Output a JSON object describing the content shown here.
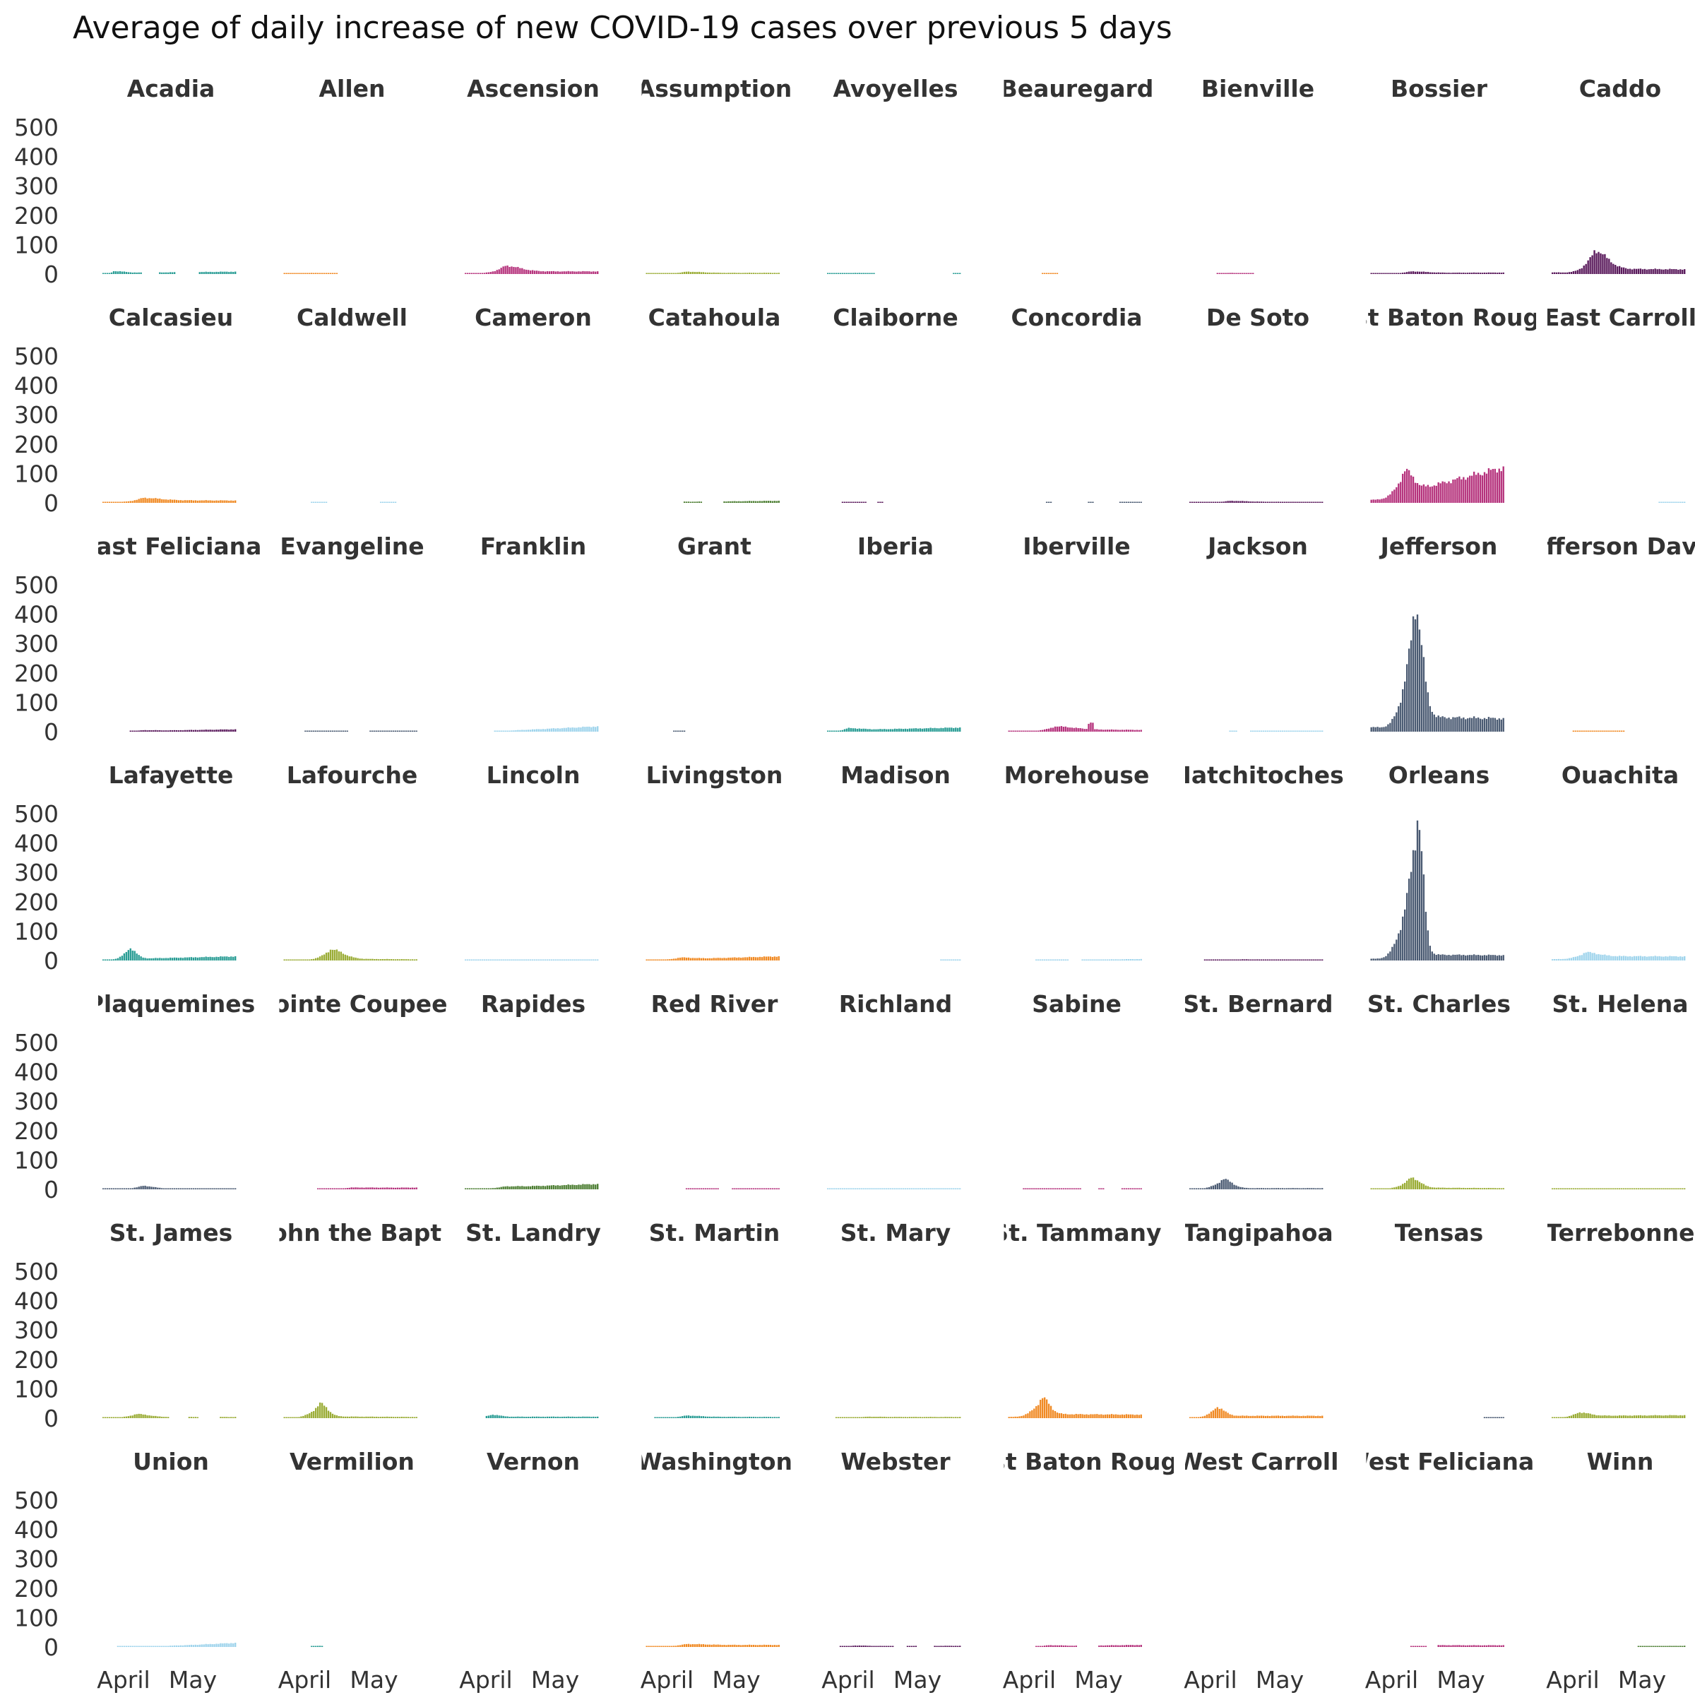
{
  "chart_data": {
    "type": "bar",
    "title": "Average of daily increase of new COVID-19 cases over previous 5 days",
    "xlabel": "",
    "ylabel": "",
    "ylim": [
      0,
      500
    ],
    "y_ticks": [
      "500",
      "400",
      "300",
      "200",
      "100",
      "0"
    ],
    "x_tick_labels": [
      "April",
      "May"
    ],
    "grid": false,
    "legend": "none",
    "facet_layout": {
      "columns": 9,
      "rows": 7
    },
    "panel_titles_as_drawn": {
      "East Baton Rouge": "ast Baton Roug",
      "Jefferson Davis": "Jefferson Davis",
      "St. John the Baptist": "John the Bapt",
      "West Baton Rouge": "est Baton Roug"
    },
    "palette": {
      "teal": "#2a9d95",
      "orange": "#f08a24",
      "magenta": "#b5327c",
      "olive": "#9aac35",
      "darkpurple": "#5a1a5c",
      "slate": "#4a5a72",
      "lightblue": "#9fd4ec",
      "darkgreen": "#4e7f34"
    },
    "panels": [
      {
        "name": "Acadia",
        "color": "teal",
        "shape": {
          "base": 4,
          "peak": 10,
          "peak_pos": 0.08,
          "width": 0.08,
          "end": 8,
          "gaps": [
            [
              0.3,
              0.42
            ],
            [
              0.55,
              0.72
            ]
          ]
        }
      },
      {
        "name": "Allen",
        "color": "orange",
        "shape": {
          "base": 2,
          "peak": 4,
          "peak_pos": 0.2,
          "width": 0.1,
          "end": 0,
          "gaps": [
            [
              0.4,
              1.0
            ]
          ]
        }
      },
      {
        "name": "Ascension",
        "color": "magenta",
        "shape": {
          "base": 9,
          "peak": 28,
          "peak_pos": 0.3,
          "width": 0.12,
          "end": 9
        }
      },
      {
        "name": "Assumption",
        "color": "olive",
        "shape": {
          "base": 4,
          "peak": 8,
          "peak_pos": 0.3,
          "width": 0.12,
          "end": 4
        }
      },
      {
        "name": "Avoyelles",
        "color": "teal",
        "shape": {
          "base": 2,
          "peak": 4,
          "peak_pos": 0.2,
          "width": 0.1,
          "end": 2,
          "gaps": [
            [
              0.35,
              0.95
            ]
          ]
        }
      },
      {
        "name": "Beauregard",
        "color": "orange",
        "shape": {
          "base": 2,
          "peak": 3,
          "peak_pos": 0.3,
          "width": 0.1,
          "end": 0,
          "gaps": [
            [
              0.0,
              0.25
            ],
            [
              0.38,
              1.0
            ]
          ]
        }
      },
      {
        "name": "Bienville",
        "color": "magenta",
        "shape": {
          "base": 2,
          "peak": 4,
          "peak_pos": 0.3,
          "width": 0.1,
          "end": 0,
          "gaps": [
            [
              0.0,
              0.2
            ],
            [
              0.48,
              1.0
            ]
          ]
        }
      },
      {
        "name": "Bossier",
        "color": "darkpurple",
        "shape": {
          "base": 4,
          "peak": 9,
          "peak_pos": 0.3,
          "width": 0.12,
          "end": 5
        }
      },
      {
        "name": "Caddo",
        "color": "darkpurple",
        "shape": {
          "base": 18,
          "peak": 80,
          "peak_pos": 0.32,
          "width": 0.1,
          "end": 16
        }
      },
      {
        "name": "Calcasieu",
        "color": "orange",
        "shape": {
          "base": 9,
          "peak": 17,
          "peak_pos": 0.3,
          "width": 0.14,
          "end": 8
        }
      },
      {
        "name": "Caldwell",
        "color": "lightblue",
        "shape": {
          "base": 1,
          "peak": 2,
          "peak_pos": 0.3,
          "width": 0.1,
          "end": 1,
          "gaps": [
            [
              0.0,
              0.2
            ],
            [
              0.32,
              0.72
            ],
            [
              0.85,
              1.0
            ]
          ]
        }
      },
      {
        "name": "Cameron",
        "color": "lightblue",
        "shape": {
          "base": 0,
          "peak": 0,
          "peak_pos": 0.5,
          "width": 0.1,
          "end": 0
        }
      },
      {
        "name": "Catahoula",
        "color": "darkgreen",
        "shape": {
          "base": 3,
          "peak": 4,
          "peak_pos": 0.2,
          "width": 0.1,
          "end": 7,
          "gaps": [
            [
              0.0,
              0.27
            ],
            [
              0.42,
              0.58
            ]
          ]
        }
      },
      {
        "name": "Claiborne",
        "color": "darkpurple",
        "shape": {
          "base": 2,
          "peak": 3,
          "peak_pos": 0.2,
          "width": 0.1,
          "end": 0,
          "gaps": [
            [
              0.0,
              0.1
            ],
            [
              0.3,
              0.38
            ],
            [
              0.42,
              1.0
            ]
          ]
        }
      },
      {
        "name": "Concordia",
        "color": "slate",
        "shape": {
          "base": 1,
          "peak": 1,
          "peak_pos": 0.3,
          "width": 0.1,
          "end": 1,
          "gaps": [
            [
              0.0,
              0.28
            ],
            [
              0.33,
              0.6
            ],
            [
              0.65,
              0.84
            ]
          ]
        }
      },
      {
        "name": "De Soto",
        "color": "darkpurple",
        "shape": {
          "base": 4,
          "peak": 7,
          "peak_pos": 0.3,
          "width": 0.12,
          "end": 3
        }
      },
      {
        "name": "East Baton Rouge",
        "color": "magenta",
        "shape": {
          "base": 35,
          "peak": 110,
          "peak_pos": 0.25,
          "width": 0.07,
          "end": 120
        }
      },
      {
        "name": "East Carroll",
        "color": "lightblue",
        "shape": {
          "base": 1,
          "peak": 1,
          "peak_pos": 0.5,
          "width": 0.1,
          "end": 1,
          "gaps": [
            [
              0.0,
              0.8
            ]
          ]
        }
      },
      {
        "name": "East Feliciana",
        "color": "darkpurple",
        "shape": {
          "base": 3,
          "peak": 5,
          "peak_pos": 0.3,
          "width": 0.1,
          "end": 8,
          "gaps": [
            [
              0.0,
              0.2
            ]
          ]
        }
      },
      {
        "name": "Evangeline",
        "color": "slate",
        "shape": {
          "base": 3,
          "peak": 3,
          "peak_pos": 0.2,
          "width": 0.1,
          "end": 3,
          "gaps": [
            [
              0.0,
              0.15
            ],
            [
              0.48,
              0.65
            ]
          ]
        }
      },
      {
        "name": "Franklin",
        "color": "lightblue",
        "shape": {
          "base": 3,
          "peak": 3,
          "peak_pos": 0.3,
          "width": 0.1,
          "end": 18,
          "gaps": [
            [
              0.0,
              0.22
            ]
          ]
        }
      },
      {
        "name": "Grant",
        "color": "slate",
        "shape": {
          "base": 1,
          "peak": 2,
          "peak_pos": 0.25,
          "width": 0.05,
          "end": 0,
          "gaps": [
            [
              0.0,
              0.2
            ],
            [
              0.3,
              1.0
            ]
          ]
        }
      },
      {
        "name": "Iberia",
        "color": "teal",
        "shape": {
          "base": 6,
          "peak": 12,
          "peak_pos": 0.15,
          "width": 0.1,
          "end": 14
        }
      },
      {
        "name": "Iberville",
        "color": "magenta",
        "shape": {
          "base": 8,
          "peak": 18,
          "peak_pos": 0.35,
          "width": 0.15,
          "end": 6,
          "spike_pos": 0.62,
          "spike": 30
        }
      },
      {
        "name": "Jackson",
        "color": "lightblue",
        "shape": {
          "base": 1,
          "peak": 1,
          "peak_pos": 0.3,
          "width": 0.1,
          "end": 1,
          "gaps": [
            [
              0.0,
              0.3
            ],
            [
              0.36,
              0.45
            ]
          ]
        }
      },
      {
        "name": "Jefferson",
        "color": "slate",
        "shape": {
          "base": 50,
          "peak": 430,
          "peak_pos": 0.33,
          "width": 0.06,
          "end": 45,
          "rise_start": 0.05
        }
      },
      {
        "name": "Jefferson Davis",
        "color": "orange",
        "shape": {
          "base": 2,
          "peak": 3,
          "peak_pos": 0.3,
          "width": 0.1,
          "end": 0,
          "gaps": [
            [
              0.0,
              0.15
            ],
            [
              0.55,
              1.0
            ]
          ]
        }
      },
      {
        "name": "Lafayette",
        "color": "teal",
        "shape": {
          "base": 6,
          "peak": 42,
          "peak_pos": 0.2,
          "width": 0.05,
          "end": 14
        }
      },
      {
        "name": "Lafourche",
        "color": "olive",
        "shape": {
          "base": 6,
          "peak": 38,
          "peak_pos": 0.35,
          "width": 0.1,
          "end": 4
        }
      },
      {
        "name": "Lincoln",
        "color": "lightblue",
        "shape": {
          "base": 2,
          "peak": 2,
          "peak_pos": 0.5,
          "width": 0.1,
          "end": 2
        }
      },
      {
        "name": "Livingston",
        "color": "orange",
        "shape": {
          "base": 5,
          "peak": 10,
          "peak_pos": 0.25,
          "width": 0.1,
          "end": 14
        }
      },
      {
        "name": "Madison",
        "color": "lightblue",
        "shape": {
          "base": 1,
          "peak": 1,
          "peak_pos": 0.5,
          "width": 0.1,
          "end": 1,
          "gaps": [
            [
              0.0,
              0.85
            ]
          ]
        }
      },
      {
        "name": "Morehouse",
        "color": "lightblue",
        "shape": {
          "base": 2,
          "peak": 2,
          "peak_pos": 0.5,
          "width": 0.1,
          "end": 5,
          "gaps": [
            [
              0.0,
              0.2
            ],
            [
              0.45,
              0.55
            ]
          ]
        }
      },
      {
        "name": "Natchitoches",
        "color": "darkpurple",
        "shape": {
          "base": 3,
          "peak": 4,
          "peak_pos": 0.4,
          "width": 0.1,
          "end": 3,
          "gaps": [
            [
              0.0,
              0.1
            ]
          ]
        }
      },
      {
        "name": "Orleans",
        "color": "slate",
        "shape": {
          "base": 20,
          "peak": 490,
          "peak_pos": 0.35,
          "width": 0.045,
          "end": 18,
          "rise_start": 0.02
        }
      },
      {
        "name": "Ouachita",
        "color": "lightblue",
        "shape": {
          "base": 15,
          "peak": 28,
          "peak_pos": 0.25,
          "width": 0.1,
          "end": 14
        }
      },
      {
        "name": "Plaquemines",
        "color": "slate",
        "shape": {
          "base": 3,
          "peak": 12,
          "peak_pos": 0.3,
          "width": 0.08,
          "end": 3
        }
      },
      {
        "name": "Pointe Coupee",
        "color": "magenta",
        "shape": {
          "base": 4,
          "peak": 6,
          "peak_pos": 0.5,
          "width": 0.2,
          "end": 6,
          "gaps": [
            [
              0.0,
              0.25
            ]
          ]
        }
      },
      {
        "name": "Rapides",
        "color": "darkgreen",
        "shape": {
          "base": 8,
          "peak": 10,
          "peak_pos": 0.3,
          "width": 0.1,
          "end": 18
        }
      },
      {
        "name": "Red River",
        "color": "magenta",
        "shape": {
          "base": 2,
          "peak": 2,
          "peak_pos": 0.5,
          "width": 0.1,
          "end": 2,
          "gaps": [
            [
              0.0,
              0.3
            ],
            [
              0.55,
              0.65
            ]
          ]
        }
      },
      {
        "name": "Richland",
        "color": "lightblue",
        "shape": {
          "base": 1,
          "peak": 2,
          "peak_pos": 0.5,
          "width": 0.1,
          "end": 2
        }
      },
      {
        "name": "Sabine",
        "color": "magenta",
        "shape": {
          "base": 2,
          "peak": 2,
          "peak_pos": 0.5,
          "width": 0.1,
          "end": 2,
          "gaps": [
            [
              0.0,
              0.1
            ],
            [
              0.55,
              0.68
            ],
            [
              0.72,
              0.85
            ]
          ]
        }
      },
      {
        "name": "St. Bernard",
        "color": "slate",
        "shape": {
          "base": 4,
          "peak": 35,
          "peak_pos": 0.25,
          "width": 0.07,
          "end": 4
        }
      },
      {
        "name": "St. Charles",
        "color": "olive",
        "shape": {
          "base": 6,
          "peak": 40,
          "peak_pos": 0.3,
          "width": 0.07,
          "end": 4
        }
      },
      {
        "name": "St. Helena",
        "color": "olive",
        "shape": {
          "base": 1,
          "peak": 1,
          "peak_pos": 0.5,
          "width": 0.1,
          "end": 1
        }
      },
      {
        "name": "St. James",
        "color": "olive",
        "shape": {
          "base": 4,
          "peak": 14,
          "peak_pos": 0.25,
          "width": 0.1,
          "end": 4,
          "gaps": [
            [
              0.5,
              0.65
            ],
            [
              0.72,
              0.88
            ]
          ]
        }
      },
      {
        "name": "St. John the Baptist",
        "color": "olive",
        "shape": {
          "base": 6,
          "peak": 50,
          "peak_pos": 0.27,
          "width": 0.06,
          "end": 4
        }
      },
      {
        "name": "St. Landry",
        "color": "teal",
        "shape": {
          "base": 5,
          "peak": 12,
          "peak_pos": 0.2,
          "width": 0.06,
          "end": 5,
          "gaps": [
            [
              0.0,
              0.15
            ]
          ]
        }
      },
      {
        "name": "St. Martin",
        "color": "teal",
        "shape": {
          "base": 5,
          "peak": 9,
          "peak_pos": 0.3,
          "width": 0.1,
          "end": 4,
          "gaps": [
            [
              0.0,
              0.05
            ]
          ]
        }
      },
      {
        "name": "St. Mary",
        "color": "olive",
        "shape": {
          "base": 4,
          "peak": 5,
          "peak_pos": 0.3,
          "width": 0.1,
          "end": 4,
          "gaps": [
            [
              0.0,
              0.05
            ]
          ]
        }
      },
      {
        "name": "St. Tammany",
        "color": "orange",
        "shape": {
          "base": 14,
          "peak": 70,
          "peak_pos": 0.25,
          "width": 0.06,
          "end": 12
        }
      },
      {
        "name": "Tangipahoa",
        "color": "orange",
        "shape": {
          "base": 8,
          "peak": 38,
          "peak_pos": 0.2,
          "width": 0.06,
          "end": 8
        }
      },
      {
        "name": "Tensas",
        "color": "slate",
        "shape": {
          "base": 1,
          "peak": 1,
          "peak_pos": 0.9,
          "width": 0.05,
          "end": 1,
          "gaps": [
            [
              0.0,
              0.85
            ]
          ]
        }
      },
      {
        "name": "Terrebonne",
        "color": "olive",
        "shape": {
          "base": 8,
          "peak": 20,
          "peak_pos": 0.2,
          "width": 0.08,
          "end": 10
        }
      },
      {
        "name": "Union",
        "color": "lightblue",
        "shape": {
          "base": 3,
          "peak": 4,
          "peak_pos": 0.5,
          "width": 0.1,
          "end": 14,
          "gaps": [
            [
              0.0,
              0.1
            ]
          ]
        }
      },
      {
        "name": "Vermilion",
        "color": "teal",
        "shape": {
          "base": 2,
          "peak": 4,
          "peak_pos": 0.25,
          "width": 0.05,
          "end": 0,
          "gaps": [
            [
              0.0,
              0.2
            ],
            [
              0.3,
              1.0
            ]
          ]
        }
      },
      {
        "name": "Vernon",
        "color": "lightblue",
        "shape": {
          "base": 0,
          "peak": 0,
          "peak_pos": 0.5,
          "width": 0.1,
          "end": 0
        }
      },
      {
        "name": "Washington",
        "color": "orange",
        "shape": {
          "base": 7,
          "peak": 10,
          "peak_pos": 0.3,
          "width": 0.15,
          "end": 7
        }
      },
      {
        "name": "Webster",
        "color": "darkpurple",
        "shape": {
          "base": 3,
          "peak": 5,
          "peak_pos": 0.2,
          "width": 0.1,
          "end": 4,
          "gaps": [
            [
              0.0,
              0.08
            ],
            [
              0.5,
              0.6
            ],
            [
              0.68,
              0.8
            ]
          ]
        }
      },
      {
        "name": "West Baton Rouge",
        "color": "magenta",
        "shape": {
          "base": 3,
          "peak": 6,
          "peak_pos": 0.3,
          "width": 0.1,
          "end": 7,
          "gaps": [
            [
              0.0,
              0.2
            ],
            [
              0.52,
              0.68
            ]
          ]
        }
      },
      {
        "name": "West Carroll",
        "color": "lightblue",
        "shape": {
          "base": 0,
          "peak": 0,
          "peak_pos": 0.5,
          "width": 0.1,
          "end": 0
        }
      },
      {
        "name": "West Feliciana",
        "color": "magenta",
        "shape": {
          "base": 4,
          "peak": 6,
          "peak_pos": 0.5,
          "width": 0.2,
          "end": 6,
          "gaps": [
            [
              0.0,
              0.3
            ],
            [
              0.42,
              0.5
            ]
          ]
        }
      },
      {
        "name": "Winn",
        "color": "darkgreen",
        "shape": {
          "base": 2,
          "peak": 3,
          "peak_pos": 0.8,
          "width": 0.1,
          "end": 4,
          "gaps": [
            [
              0.0,
              0.65
            ]
          ]
        }
      }
    ]
  }
}
